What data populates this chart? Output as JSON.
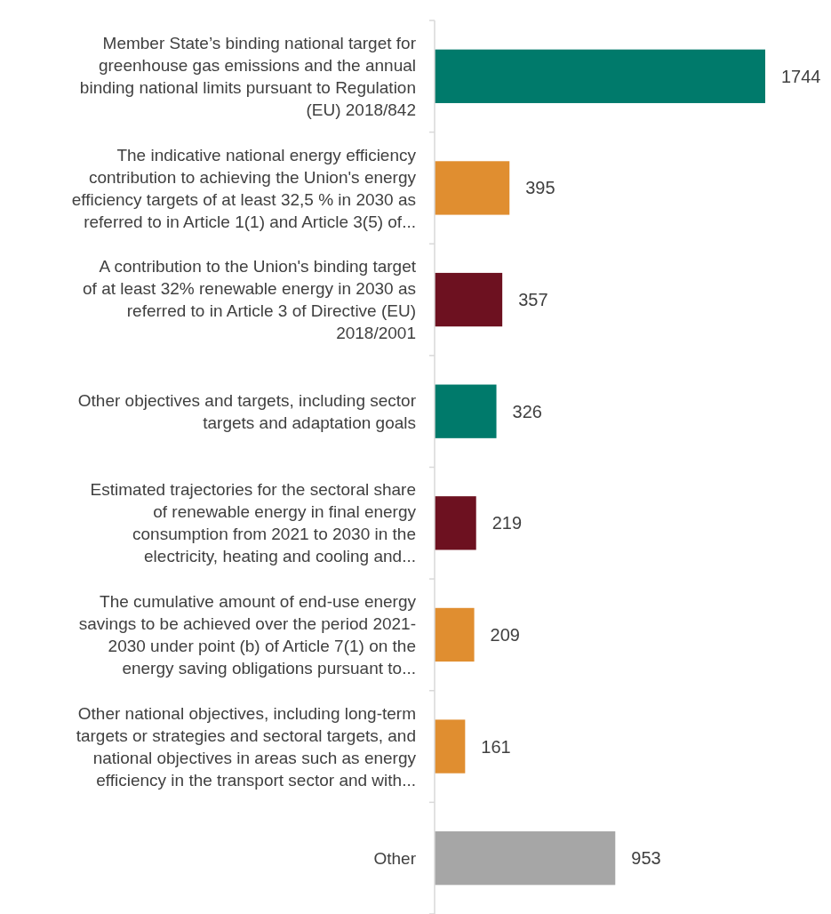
{
  "chart_data": {
    "type": "bar",
    "orientation": "horizontal",
    "data_labels": true,
    "categories": [
      "Member State’s binding national target for\ngreenhouse gas emissions and the annual\nbinding national limits pursuant to Regulation\n(EU) 2018/842",
      "The indicative national energy efficiency\ncontribution to achieving the Union's energy\nefficiency targets of at least 32,5 % in 2030 as\nreferred to in Article 1(1) and Article 3(5) of...",
      "A contribution to the Union's binding target\nof at least 32% renewable energy in 2030 as\nreferred to in Article 3 of Directive (EU)\n2018/2001",
      "Other objectives and targets, including sector\ntargets and adaptation goals",
      "Estimated trajectories for the sectoral share\nof renewable energy in final energy\nconsumption from 2021 to 2030 in the\nelectricity, heating and cooling and...",
      "The cumulative amount of end-use energy\nsavings to be achieved over the period 2021-\n2030 under point (b) of Article 7(1) on the\nenergy saving obligations pursuant to...",
      "Other national objectives, including long-term\ntargets or strategies and sectoral targets, and\nnational objectives in areas such as energy\nefficiency in the transport sector and with...",
      "Other"
    ],
    "values": [
      1744,
      395,
      357,
      326,
      219,
      209,
      161,
      953
    ],
    "colors": [
      "#007a6b",
      "#e08e30",
      "#6d1120",
      "#007a6b",
      "#6d1120",
      "#e08e30",
      "#e08e30",
      "#a6a6a6"
    ]
  }
}
